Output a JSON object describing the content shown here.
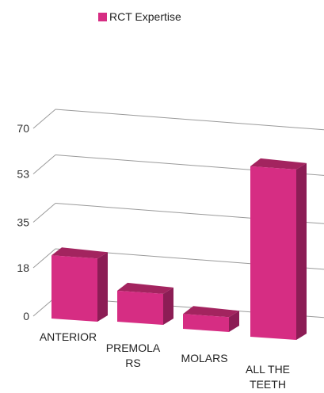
{
  "chart_data": {
    "type": "bar",
    "categories": [
      "ANTERIOR",
      "PREMOLARS",
      "MOLARS",
      "ALL THE TEETH"
    ],
    "category_lines": [
      [
        "ANTERIOR"
      ],
      [
        "PREMOLA",
        "RS"
      ],
      [
        "MOLARS"
      ],
      [
        "ALL THE",
        "TEETH"
      ]
    ],
    "series": [
      {
        "name": "RCT Expertise",
        "values": [
          20,
          8,
          2,
          60
        ],
        "color": "#d62d83"
      }
    ],
    "y_ticks": [
      "70",
      "53",
      "35",
      "18",
      "0"
    ],
    "ylim": [
      0,
      70
    ],
    "grid": true,
    "legend_position": "top",
    "projection": "3d"
  }
}
